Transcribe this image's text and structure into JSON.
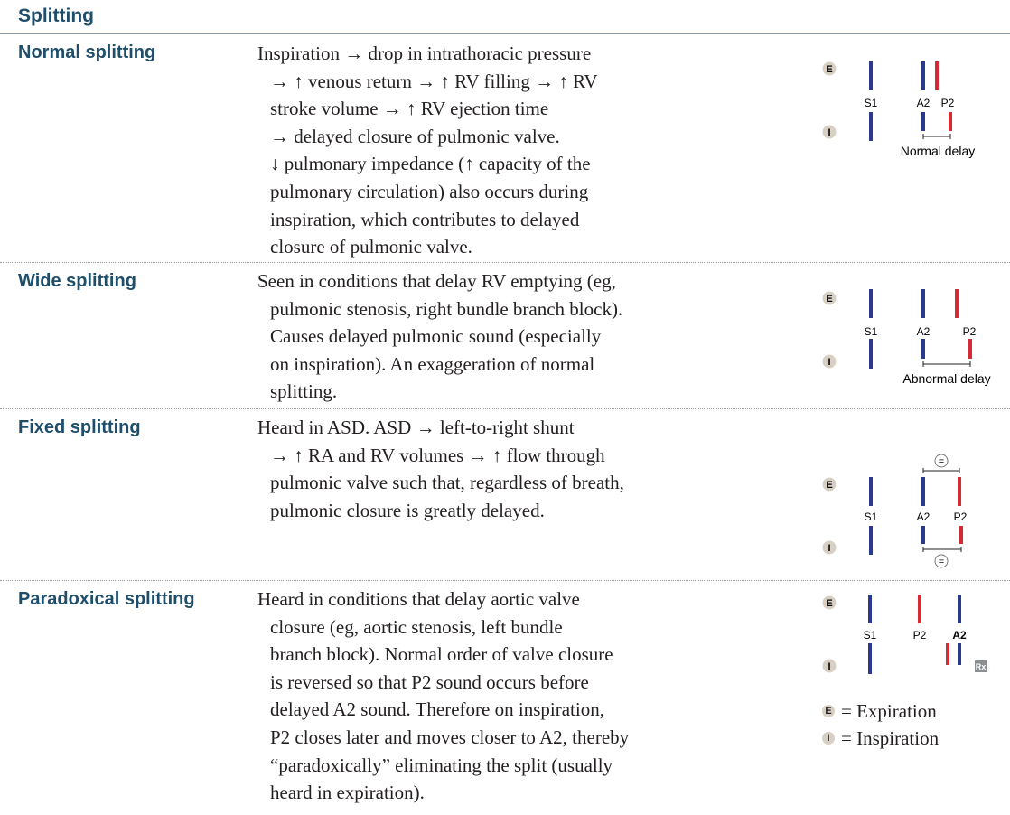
{
  "header": {
    "title": "Splitting"
  },
  "rows": [
    {
      "label": "Normal splitting",
      "lines": [
        "Inspiration → drop in intrathoracic pressure",
        "→ ↑ venous return → ↑ RV filling → ↑ RV",
        "stroke volume → ↑ RV ejection time",
        "→ delayed closure of pulmonic valve.",
        "↓ pulmonary impedance (↑ capacity of the",
        "pulmonary circulation) also occurs during",
        "inspiration, which contributes to delayed",
        "closure of pulmonic valve."
      ],
      "diagram": {
        "e": "E",
        "i": "I",
        "s1": "S1",
        "a2": "A2",
        "p2": "P2",
        "caption": "Normal delay"
      }
    },
    {
      "label": "Wide splitting",
      "lines": [
        "Seen in conditions that delay RV emptying (eg,",
        "pulmonic stenosis, right bundle branch block).",
        "Causes delayed pulmonic sound (especially",
        "on inspiration). An exaggeration of normal",
        "splitting."
      ],
      "diagram": {
        "e": "E",
        "i": "I",
        "s1": "S1",
        "a2": "A2",
        "p2": "P2",
        "caption": "Abnormal delay"
      }
    },
    {
      "label": "Fixed splitting",
      "lines": [
        "Heard in ASD. ASD → left-to-right shunt",
        "→ ↑ RA and RV volumes → ↑ flow through",
        "pulmonic valve such that, regardless of breath,",
        "pulmonic closure is greatly delayed."
      ],
      "diagram": {
        "e": "E",
        "i": "I",
        "s1": "S1",
        "a2": "A2",
        "p2": "P2",
        "equal": "="
      }
    },
    {
      "label": "Paradoxical splitting",
      "lines": [
        "Heard in conditions that delay aortic valve",
        "closure (eg, aortic stenosis, left bundle",
        "branch block). Normal order of valve closure",
        "is reversed so that P2 sound occurs before",
        "delayed A2 sound. Therefore on inspiration,",
        "P2 closes later and moves closer to A2, thereby",
        "“paradoxically” eliminating the split (usually",
        "heard in expiration)."
      ],
      "diagram": {
        "e": "E",
        "i": "I",
        "s1": "S1",
        "a2": "A2",
        "p2": "P2",
        "rx": "Rx"
      }
    }
  ],
  "legend": {
    "e_badge": "E",
    "e_text": "= Expiration",
    "i_badge": "I",
    "i_text": "= Inspiration"
  },
  "colors": {
    "aortic": "#2b3a8c",
    "pulmonic": "#d52b36",
    "heading": "#1f4e6b",
    "badge": "#d9d0c5"
  }
}
